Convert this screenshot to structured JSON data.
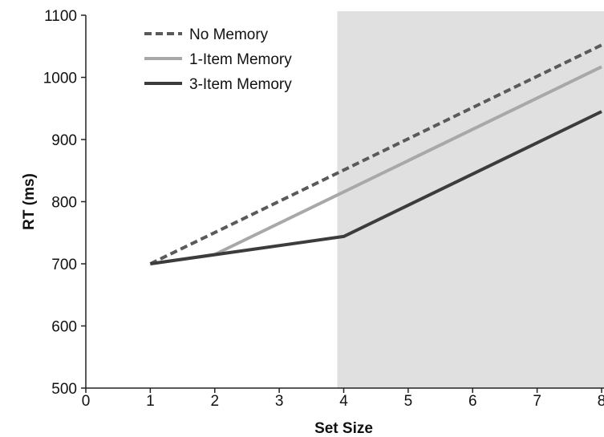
{
  "chart_data": {
    "type": "line",
    "xlabel": "Set Size",
    "ylabel": "RT (ms)",
    "xlim": [
      0,
      8
    ],
    "ylim": [
      500,
      1100
    ],
    "x_ticks": [
      0,
      1,
      2,
      3,
      4,
      5,
      6,
      7,
      8
    ],
    "y_ticks": [
      500,
      600,
      700,
      800,
      900,
      1000,
      1100
    ],
    "grid": false,
    "legend_position": "top-left",
    "shaded_region": {
      "x_start": 3.9,
      "x_end": 8,
      "color": "#e0e0e0"
    },
    "series": [
      {
        "name": "No Memory",
        "style": "dashed",
        "color": "#5a5a5a",
        "points": [
          [
            1,
            700
          ],
          [
            8,
            1052
          ]
        ]
      },
      {
        "name": "1-Item Memory",
        "style": "solid",
        "color": "#a8a8a8",
        "points": [
          [
            1,
            700
          ],
          [
            2,
            715
          ],
          [
            8,
            1017
          ]
        ]
      },
      {
        "name": "3-Item Memory",
        "style": "solid",
        "color": "#3c3c3c",
        "points": [
          [
            1,
            700
          ],
          [
            4,
            744
          ],
          [
            8,
            945
          ]
        ]
      }
    ]
  }
}
